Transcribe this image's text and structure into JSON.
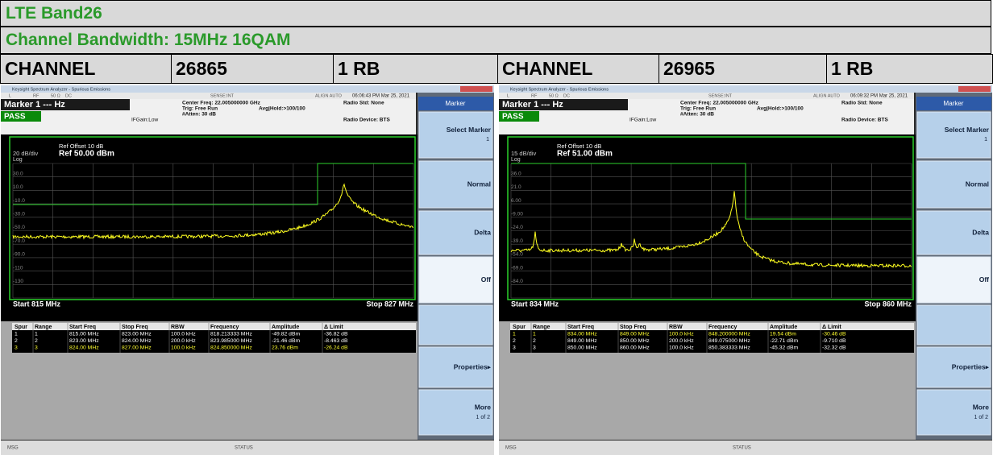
{
  "header": {
    "title": "LTE Band26",
    "subtitle": "Channel Bandwidth: 15MHz 16QAM"
  },
  "channels": [
    {
      "label": "CHANNEL",
      "channel": "26865",
      "rb": "1 RB"
    },
    {
      "label": "CHANNEL",
      "channel": "26965",
      "rb": "1 RB"
    }
  ],
  "screens": [
    {
      "window_title": "Keysight Spectrum Analyzer - Spurious Emissions",
      "toolbar": [
        "L",
        "RF",
        "50 Ω",
        "DC",
        "SENSE:INT",
        "ALIGN AUTO"
      ],
      "timestamp": "06:06:43 PM Mar 25, 2021",
      "marker": "Marker 1 --- Hz",
      "status": "PASS",
      "ifgain": "IFGain:Low",
      "settings": [
        "Center Freq: 22.005000000 GHz",
        "Trig: Free Run",
        "#Atten: 30 dB"
      ],
      "avg": "Avg|Hold:>100/100",
      "radio_std": "Radio Std: None",
      "radio_device": "Radio Device: BTS",
      "ref_offset": "Ref Offset 10 dB",
      "ref_level": "Ref 50.00 dBm",
      "scale": "20 dB/div",
      "log": "Log",
      "y_labels": [
        "30.0",
        "10.0",
        "-10.0",
        "-30.0",
        "-50.0",
        "-70.0",
        "-90.0",
        "-110",
        "-130"
      ],
      "start": "Start 815 MHz",
      "stop": "Stop 827 MHz",
      "table": {
        "columns": [
          "Spur",
          "Range",
          "Start Freq",
          "Stop Freq",
          "RBW",
          "Frequency",
          "Amplitude",
          "Δ Limit"
        ],
        "rows": [
          [
            "1",
            "1",
            "815.00 MHz",
            "823.00 MHz",
            "100.0 kHz",
            "818.213333 MHz",
            "-49.82 dBm",
            "-36.82 dB"
          ],
          [
            "2",
            "2",
            "823.00 MHz",
            "824.00 MHz",
            "200.0 kHz",
            "823.985000 MHz",
            "-21.46 dBm",
            "-8.463 dB"
          ],
          [
            "3",
            "3",
            "824.00 MHz",
            "827.00 MHz",
            "100.0 kHz",
            "824.850000 MHz",
            "23.76 dBm",
            "-26.24 dB"
          ]
        ],
        "highlighted": [
          false,
          false,
          true
        ]
      },
      "softkeys": {
        "title": "Marker",
        "select": "Select Marker",
        "select_value": "1",
        "normal": "Normal",
        "delta": "Delta",
        "off": "Off",
        "properties": "Properties▸",
        "more": "More",
        "more_page": "1 of 2"
      },
      "msg": "MSG",
      "status_bar": "STATUS"
    },
    {
      "window_title": "Keysight Spectrum Analyzer - Spurious Emissions",
      "toolbar": [
        "L",
        "RF",
        "50 Ω",
        "DC",
        "SENSE:INT",
        "ALIGN AUTO"
      ],
      "timestamp": "06:09:32 PM Mar 25, 2021",
      "marker": "Marker 1 --- Hz",
      "status": "PASS",
      "ifgain": "IFGain:Low",
      "settings": [
        "Center Freq: 22.005000000 GHz",
        "Trig: Free Run",
        "#Atten: 30 dB"
      ],
      "avg": "Avg|Hold:>100/100",
      "radio_std": "Radio Std: None",
      "radio_device": "Radio Device: BTS",
      "ref_offset": "Ref Offset 10 dB",
      "ref_level": "Ref 51.00 dBm",
      "scale": "15 dB/div",
      "log": "Log",
      "y_labels": [
        "36.0",
        "21.0",
        "6.00",
        "-9.00",
        "-24.0",
        "-39.0",
        "-54.0",
        "-69.0",
        "-84.0"
      ],
      "start": "Start 834 MHz",
      "stop": "Stop 860 MHz",
      "table": {
        "columns": [
          "Spur",
          "Range",
          "Start Freq",
          "Stop Freq",
          "RBW",
          "Frequency",
          "Amplitude",
          "Δ Limit"
        ],
        "rows": [
          [
            "1",
            "1",
            "834.00 MHz",
            "849.00 MHz",
            "100.0 kHz",
            "848.200000 MHz",
            "19.54 dBm",
            "-30.46 dB"
          ],
          [
            "2",
            "2",
            "849.00 MHz",
            "850.00 MHz",
            "200.0 kHz",
            "849.075000 MHz",
            "-22.71 dBm",
            "-9.710 dB"
          ],
          [
            "3",
            "3",
            "850.00 MHz",
            "860.00 MHz",
            "100.0 kHz",
            "850.383333 MHz",
            "-45.32 dBm",
            "-32.32 dB"
          ]
        ],
        "highlighted": [
          true,
          false,
          false
        ]
      },
      "softkeys": {
        "title": "Marker",
        "select": "Select Marker",
        "select_value": "1",
        "normal": "Normal",
        "delta": "Delta",
        "off": "Off",
        "properties": "Properties▸",
        "more": "More",
        "more_page": "1 of 2"
      },
      "msg": "MSG",
      "status_bar": "STATUS"
    }
  ]
}
